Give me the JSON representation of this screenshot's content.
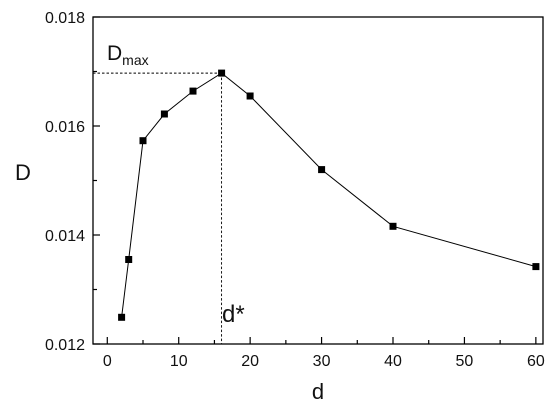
{
  "chart_data": {
    "type": "line",
    "xlabel": "d",
    "ylabel": "D",
    "xlim": [
      -2,
      61
    ],
    "ylim": [
      0.012,
      0.018
    ],
    "x_ticks": [
      0,
      10,
      20,
      30,
      40,
      50,
      60
    ],
    "x_tick_labels": [
      "0",
      "10",
      "20",
      "30",
      "40",
      "50",
      "60"
    ],
    "y_ticks": [
      0.012,
      0.014,
      0.016,
      0.018
    ],
    "y_tick_labels": [
      "0.012",
      "0.014",
      "0.016",
      "0.018"
    ],
    "grid": false,
    "marker": "square",
    "series": [
      {
        "color": "#000000",
        "x": [
          2,
          3,
          5,
          8,
          12,
          16,
          20,
          30,
          40,
          60
        ],
        "y": [
          0.01249,
          0.01355,
          0.01573,
          0.01622,
          0.01664,
          0.01697,
          0.01655,
          0.0152,
          0.01416,
          0.01342
        ]
      }
    ],
    "annotations": {
      "dmax": {
        "main": "D",
        "sub": "max",
        "y": 0.01697
      },
      "dstar": {
        "text": "d*",
        "x": 16
      }
    }
  }
}
